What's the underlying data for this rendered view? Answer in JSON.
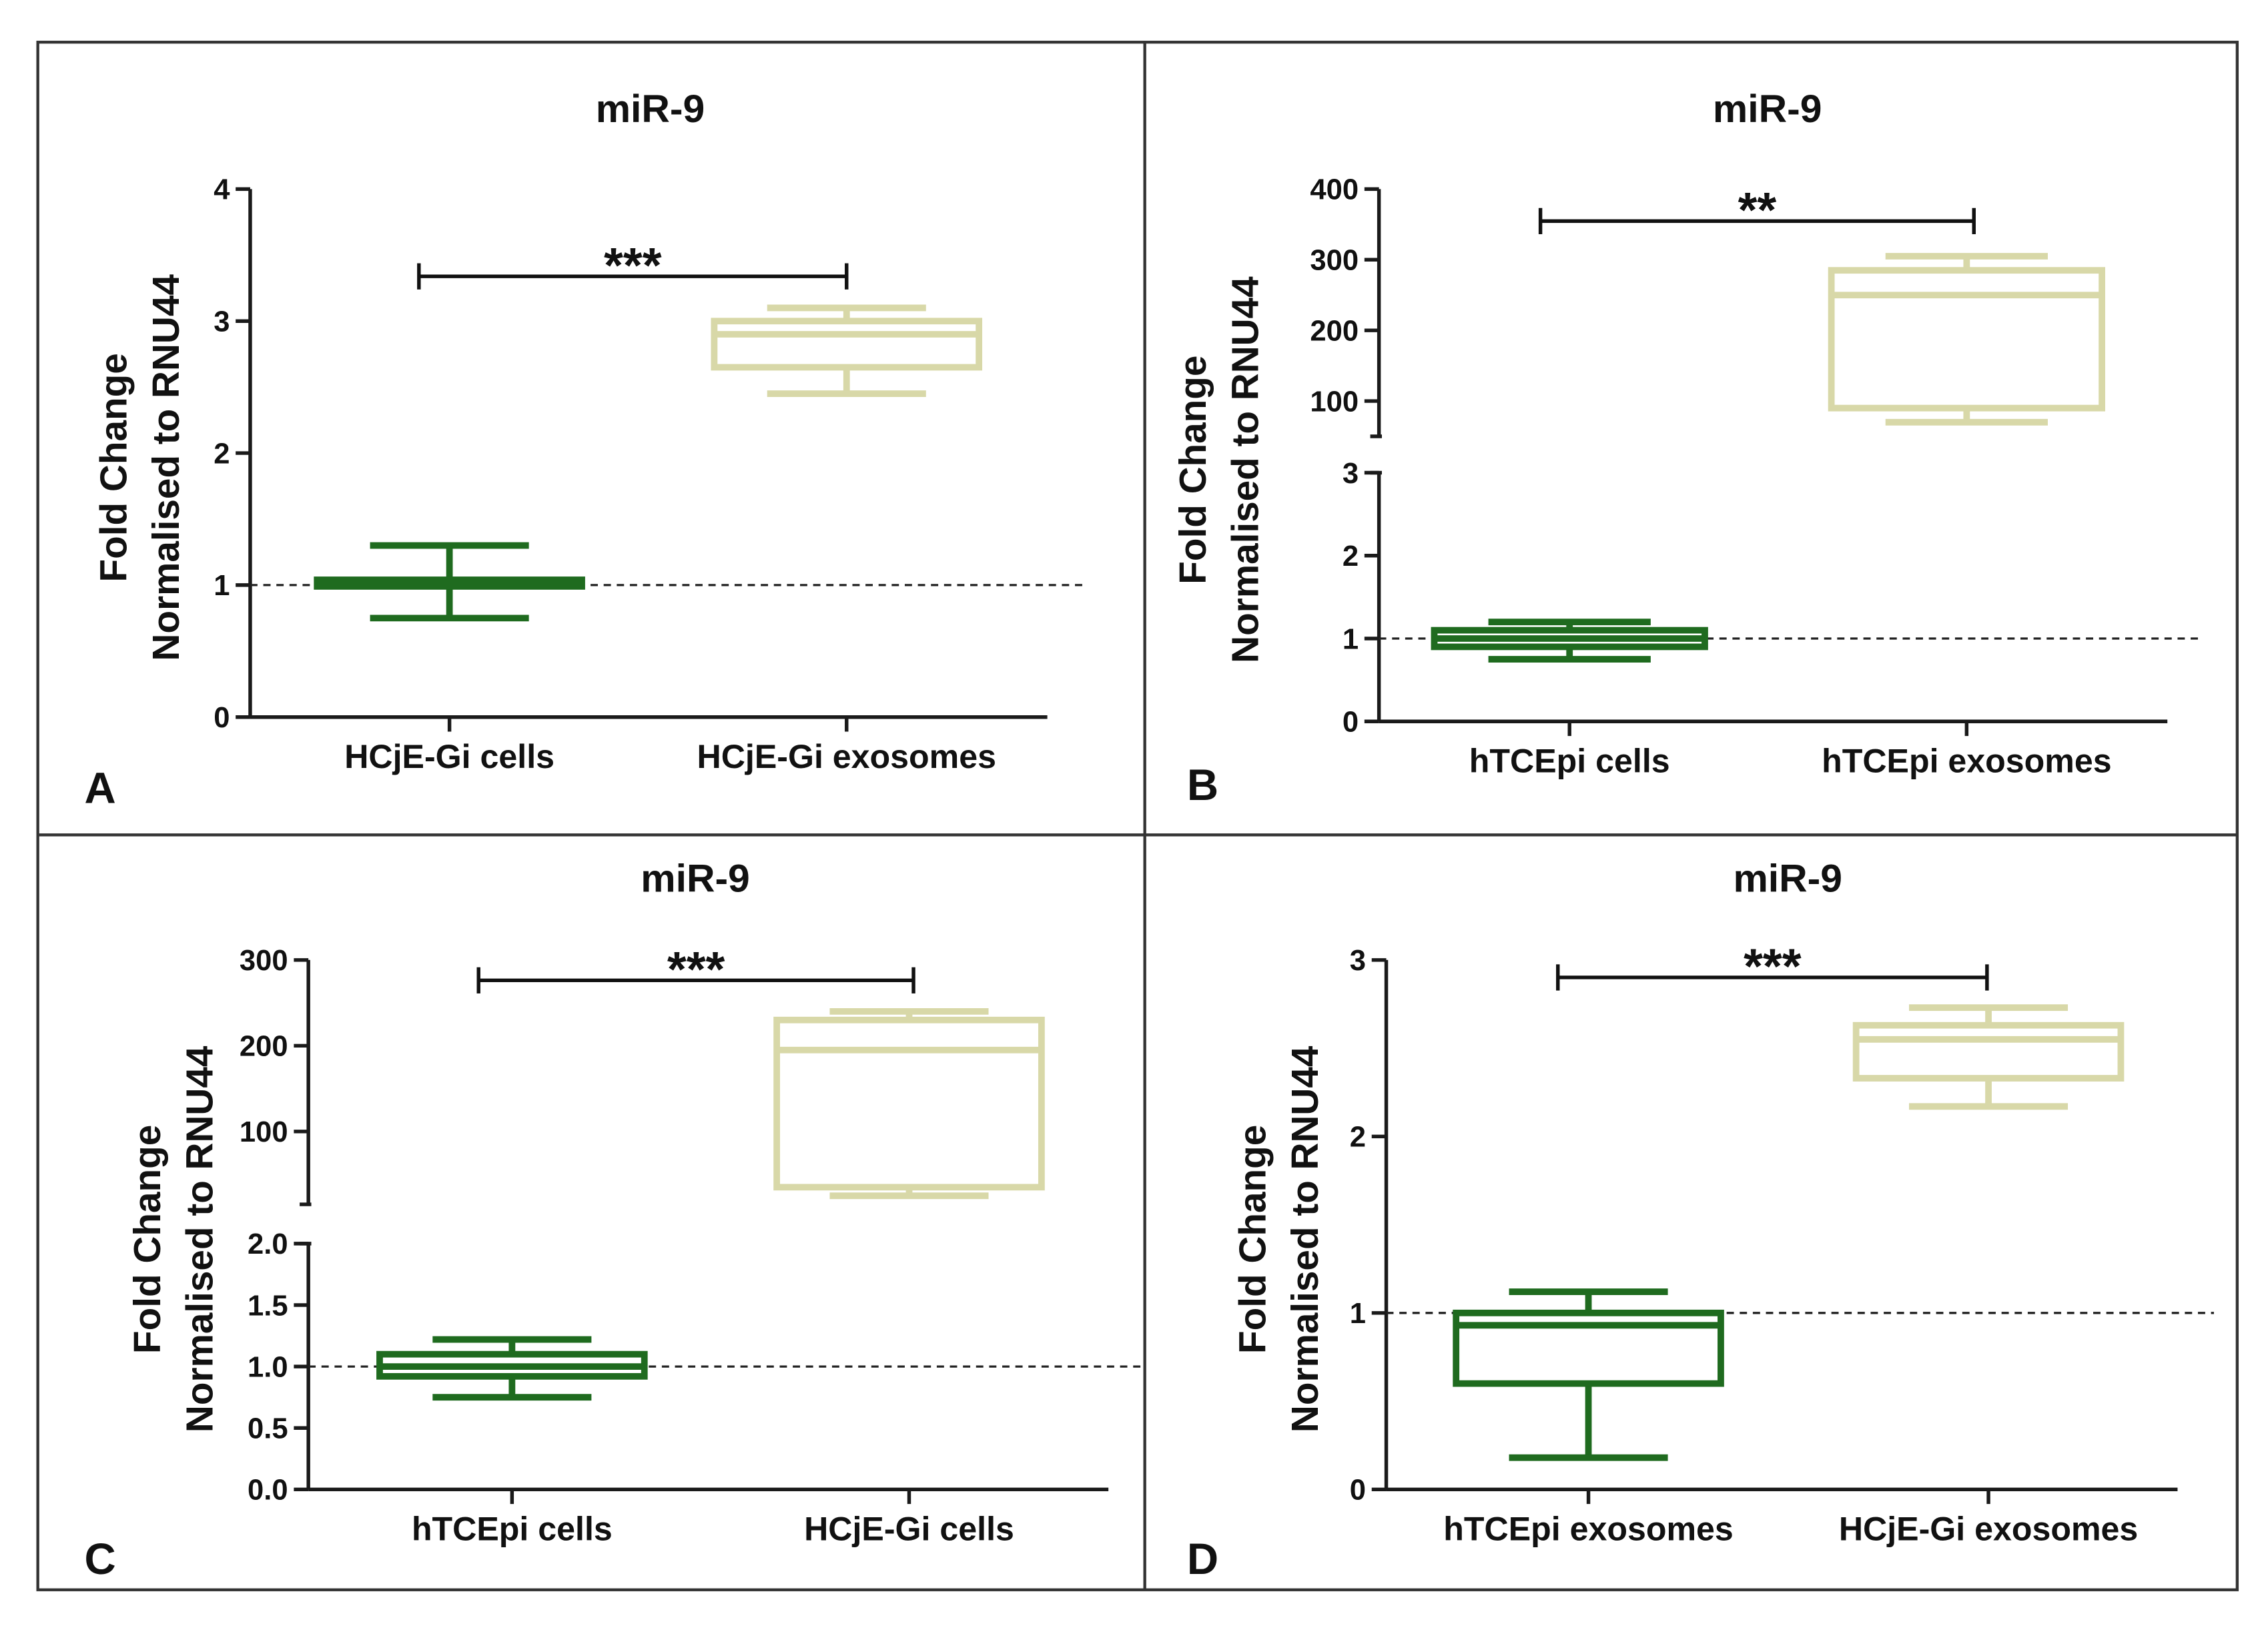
{
  "colors": {
    "frame": "#333333",
    "axis": "#1a1a1a",
    "group1": "#1f6b1f",
    "group2": "#d8d8a8",
    "reference_line": "#222222"
  },
  "chart_data": [
    {
      "panel": "A",
      "type": "boxplot",
      "title": "miR-9",
      "ylabel_line1": "Fold Change",
      "ylabel_line2": "Normalised to RNU44",
      "categories": [
        "HCjE-Gi cells",
        "HCjE-Gi exosomes"
      ],
      "y_ticks": [
        "0",
        "1",
        "2",
        "3",
        "4"
      ],
      "ylim": [
        0,
        4
      ],
      "reference_line": 1,
      "significance": "***",
      "boxes": [
        {
          "min": 0.75,
          "q1": 0.99,
          "median": 1.0,
          "q3": 1.04,
          "max": 1.3
        },
        {
          "min": 2.45,
          "q1": 2.65,
          "median": 2.9,
          "q3": 3.0,
          "max": 3.1
        }
      ]
    },
    {
      "panel": "B",
      "type": "boxplot",
      "title": "miR-9",
      "ylabel_line1": "Fold Change",
      "ylabel_line2": "Normalised to RNU44",
      "categories": [
        "hTCEpi cells",
        "hTCEpi exosomes"
      ],
      "y_ticks_lower": [
        "0",
        "1",
        "2",
        "3"
      ],
      "y_ticks_upper": [
        "100",
        "200",
        "300",
        "400"
      ],
      "ylim_lower": [
        0,
        3
      ],
      "ylim_upper": [
        50,
        400
      ],
      "axis_break": true,
      "reference_line": 1,
      "significance": "**",
      "boxes": [
        {
          "min": 0.75,
          "q1": 0.9,
          "median": 1.0,
          "q3": 1.1,
          "max": 1.2
        },
        {
          "min": 70,
          "q1": 90,
          "median": 250,
          "q3": 285,
          "max": 305
        }
      ]
    },
    {
      "panel": "C",
      "type": "boxplot",
      "title": "miR-9",
      "ylabel_line1": "Fold Change",
      "ylabel_line2": "Normalised to RNU44",
      "categories": [
        "hTCEpi cells",
        "HCjE-Gi cells"
      ],
      "y_ticks_lower": [
        "0.0",
        "0.5",
        "1.0",
        "1.5",
        "2.0"
      ],
      "y_ticks_upper": [
        "100",
        "200",
        "300"
      ],
      "ylim_lower": [
        0,
        2
      ],
      "ylim_upper": [
        15,
        300
      ],
      "axis_break": true,
      "reference_line": 1,
      "significance": "***",
      "boxes": [
        {
          "min": 0.75,
          "q1": 0.92,
          "median": 1.0,
          "q3": 1.1,
          "max": 1.22
        },
        {
          "min": 25,
          "q1": 35,
          "median": 195,
          "q3": 230,
          "max": 240
        }
      ]
    },
    {
      "panel": "D",
      "type": "boxplot",
      "title": "miR-9",
      "ylabel_line1": "Fold Change",
      "ylabel_line2": "Normalised to RNU44",
      "categories": [
        "hTCEpi exosomes",
        "HCjE-Gi exosomes"
      ],
      "y_ticks": [
        "0",
        "1",
        "2",
        "3"
      ],
      "ylim": [
        0,
        3
      ],
      "reference_line": 1,
      "significance": "***",
      "boxes": [
        {
          "min": 0.18,
          "q1": 0.6,
          "median": 0.93,
          "q3": 1.0,
          "max": 1.12
        },
        {
          "min": 2.17,
          "q1": 2.33,
          "median": 2.55,
          "q3": 2.63,
          "max": 2.73
        }
      ]
    }
  ]
}
